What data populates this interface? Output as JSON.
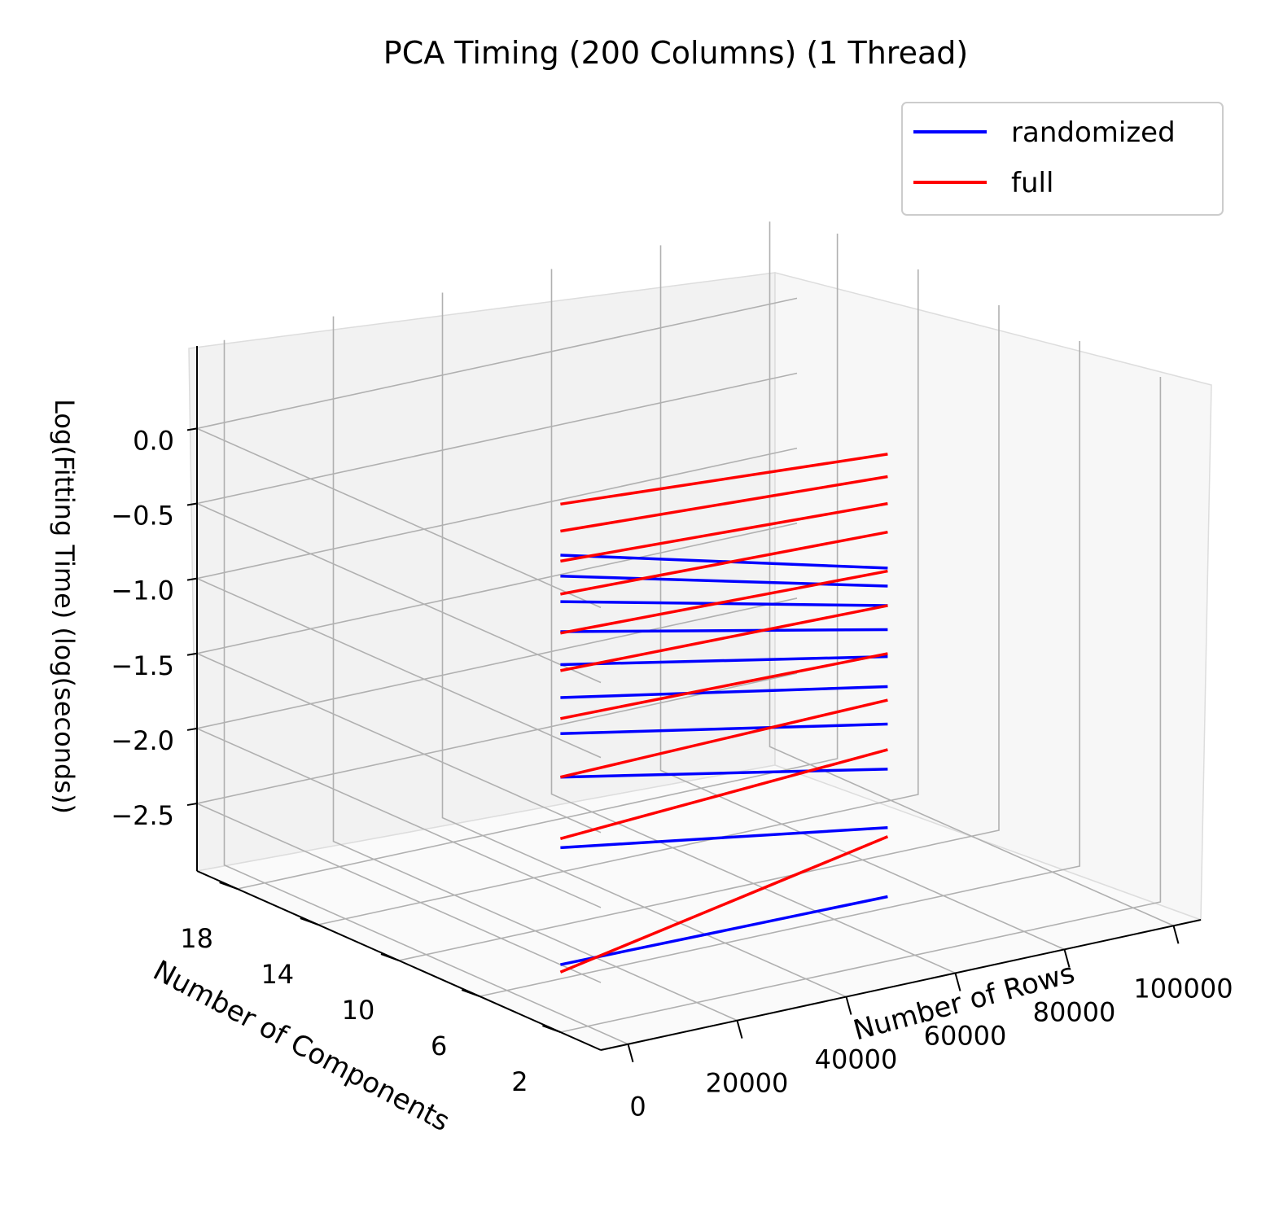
{
  "chart_data": {
    "type": "line",
    "projection": "3d",
    "title": "PCA Timing (200 Columns) (1 Thread)",
    "xlabel": "Number of Rows",
    "ylabel": "Number of Components",
    "zlabel": "Log(Fitting Time) (log(seconds))",
    "x_ticks": [
      "0",
      "20000",
      "40000",
      "60000",
      "80000",
      "100000"
    ],
    "y_ticks": [
      "2",
      "6",
      "10",
      "14",
      "18"
    ],
    "z_ticks": [
      "−2.5",
      "−2.0",
      "−1.5",
      "−1.0",
      "−0.5",
      "0.0"
    ],
    "legend": {
      "position": "top-right",
      "entries": [
        "randomized",
        "full"
      ]
    },
    "grid": true,
    "colors": {
      "randomized": "#0000ff",
      "full": "#ff0000"
    },
    "series": [
      {
        "name": "randomized",
        "color": "#0000ff",
        "components": 2,
        "points": [
          [
            -5,
            -2.5
          ],
          [
            55,
            -2.52
          ],
          [
            -5,
            -1.72
          ],
          [
            55,
            -2.06
          ],
          [
            -5,
            -1.25
          ],
          [
            55,
            -1.67
          ],
          [
            -5,
            -0.96
          ],
          [
            55,
            -1.37
          ],
          [
            -5,
            -0.72
          ],
          [
            55,
            -1.12
          ],
          [
            -5,
            -0.5
          ],
          [
            55,
            -0.92
          ],
          [
            -5,
            -0.28
          ],
          [
            55,
            -0.74
          ],
          [
            -5,
            -0.08
          ],
          [
            55,
            -0.58
          ],
          [
            -5,
            0.09
          ],
          [
            55,
            -0.45
          ],
          [
            -5,
            0.23
          ],
          [
            55,
            -0.33
          ]
        ]
      },
      {
        "name": "full",
        "color": "#ff0000",
        "components": 2,
        "points": [
          [
            -5,
            -2.55
          ],
          [
            55,
            -2.12
          ],
          [
            -5,
            -1.66
          ],
          [
            55,
            -1.54
          ],
          [
            -5,
            -1.25
          ],
          [
            55,
            -1.21
          ],
          [
            -5,
            -0.86
          ],
          [
            55,
            -0.9
          ],
          [
            -5,
            -0.54
          ],
          [
            55,
            -0.58
          ],
          [
            -5,
            -0.29
          ],
          [
            55,
            -0.35
          ],
          [
            -5,
            -0.03
          ],
          [
            55,
            -0.09
          ],
          [
            -5,
            0.19
          ],
          [
            55,
            0.1
          ],
          [
            -5,
            0.39
          ],
          [
            55,
            0.28
          ],
          [
            -5,
            0.57
          ],
          [
            55,
            0.43
          ]
        ]
      }
    ]
  },
  "legend_labels": {
    "randomized": "randomized",
    "full": "full"
  }
}
